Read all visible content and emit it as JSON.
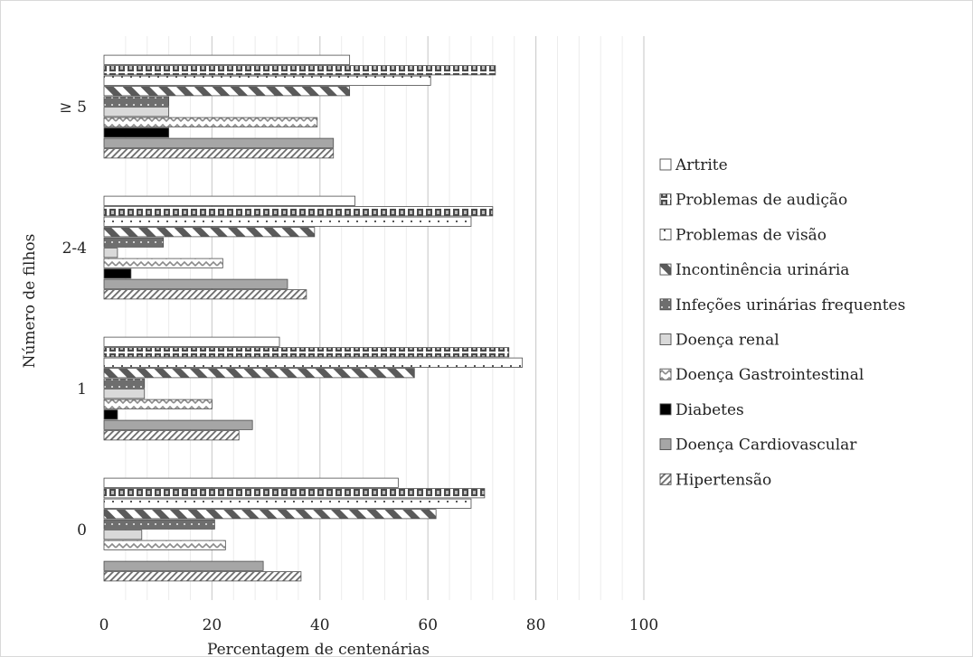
{
  "chart_data": {
    "type": "bar",
    "orientation": "horizontal",
    "xlabel": "Percentagem de centenárias",
    "ylabel": "Número de filhos",
    "xlim": [
      0,
      100
    ],
    "xticks": [
      "0",
      "20",
      "40",
      "60",
      "80",
      "100"
    ],
    "categories": [
      "0",
      "1",
      "2-4",
      "≥ 5"
    ],
    "legend_position": "right",
    "grid": "vertical",
    "series": [
      {
        "name": "Artrite",
        "pattern": "plain",
        "color": "#ffffff",
        "values": [
          54.5,
          32.5,
          46.5,
          45.5
        ]
      },
      {
        "name": "Problemas de audição",
        "pattern": "checker",
        "color": "#595959",
        "values": [
          70.5,
          75,
          72,
          72.5
        ]
      },
      {
        "name": "Problemas de visão",
        "pattern": "dots",
        "color": "#ffffff",
        "values": [
          68,
          77.5,
          68,
          60.5
        ]
      },
      {
        "name": "Incontinência urinária",
        "pattern": "diagonal",
        "color": "#595959",
        "values": [
          61.5,
          57.5,
          39,
          45.5
        ]
      },
      {
        "name": "Infeções urinárias frequentes",
        "pattern": "dotsdark",
        "color": "#6e6e6e",
        "values": [
          20.5,
          7.5,
          11,
          12
        ]
      },
      {
        "name": "Doença renal",
        "pattern": "solid",
        "color": "#d9d9d9",
        "values": [
          7,
          7.5,
          2.5,
          12
        ]
      },
      {
        "name": "Doença Gastrointestinal",
        "pattern": "wave",
        "color": "#9a9a9a",
        "values": [
          22.5,
          20,
          22,
          39.5
        ]
      },
      {
        "name": "Diabetes",
        "pattern": "solid",
        "color": "#000000",
        "values": [
          0,
          2.5,
          5,
          12
        ]
      },
      {
        "name": "Doença Cardiovascular",
        "pattern": "solid",
        "color": "#a6a6a6",
        "values": [
          29.5,
          27.5,
          34,
          42.5
        ]
      },
      {
        "name": "Hipertensão",
        "pattern": "hatch",
        "color": "#7f7f7f",
        "values": [
          36.5,
          25,
          37.5,
          42.5
        ]
      }
    ]
  }
}
